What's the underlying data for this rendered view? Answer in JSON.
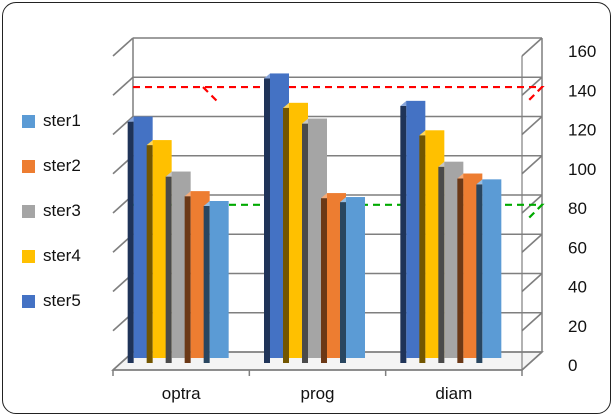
{
  "chart_data": {
    "type": "bar",
    "title": "",
    "xlabel": "",
    "ylabel": "",
    "categories": [
      "optra",
      "prog",
      "diam"
    ],
    "series": [
      {
        "name": "ster5",
        "color": "#4472C4",
        "values": [
          123,
          145,
          131
        ]
      },
      {
        "name": "ster4",
        "color": "#FFC000",
        "values": [
          111,
          130,
          116
        ]
      },
      {
        "name": "ster3",
        "color": "#A5A5A5",
        "values": [
          95,
          122,
          100
        ]
      },
      {
        "name": "ster2",
        "color": "#ED7D31",
        "values": [
          85,
          84,
          94
        ]
      },
      {
        "name": "ster1",
        "color": "#5B9BD5",
        "values": [
          80,
          82,
          91
        ]
      }
    ],
    "legend_order": [
      "ster1",
      "ster2",
      "ster3",
      "ster4",
      "ster5"
    ],
    "ylim": [
      0,
      160
    ],
    "yticks": [
      0,
      20,
      40,
      60,
      80,
      100,
      120,
      140,
      160
    ],
    "reference_lines": [
      {
        "value": 135,
        "color": "#FF0000",
        "style": "dashed"
      },
      {
        "value": 75,
        "color": "#00AA00",
        "style": "dashed"
      }
    ],
    "grid": true,
    "legend_position": "left",
    "axis_position": "right"
  }
}
